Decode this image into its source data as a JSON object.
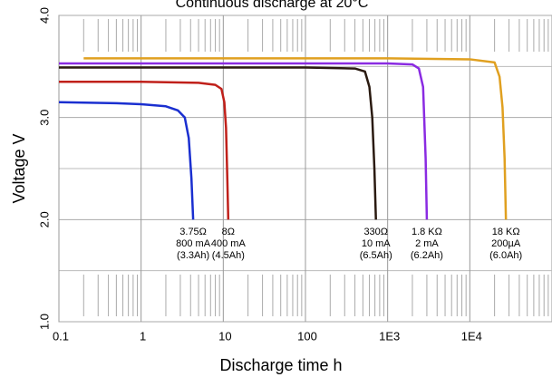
{
  "chart_data": {
    "type": "line",
    "title": "Continuous discharge at 20°C",
    "xlabel": "Discharge time h",
    "ylabel": "Voltage V",
    "xscale": "log",
    "xlim": [
      0.1,
      100000
    ],
    "ylim": [
      1,
      4
    ],
    "xticks": [
      0.1,
      1,
      10,
      100,
      {
        "value": 1000,
        "label": "1E3"
      },
      {
        "value": 10000,
        "label": "1E4"
      }
    ],
    "yticks": [
      {
        "value": 1,
        "label": "1.0"
      },
      {
        "value": 2,
        "label": "2.0"
      },
      {
        "value": 3,
        "label": "3.0"
      },
      {
        "value": 4,
        "label": "4.0"
      }
    ],
    "grid": true,
    "series": [
      {
        "name": [
          "3.75Ω",
          "800 mA",
          "(3.3Ah)"
        ],
        "color": "#1a2fd0",
        "x": [
          0.1,
          0.5,
          1,
          2,
          2.8,
          3.4,
          3.8,
          4.1,
          4.3
        ],
        "values": [
          3.15,
          3.14,
          3.13,
          3.11,
          3.07,
          3.0,
          2.8,
          2.4,
          2.0
        ]
      },
      {
        "name": [
          "8Ω",
          "400 mA",
          "(4.5Ah)"
        ],
        "color": "#c0201a",
        "x": [
          0.1,
          1,
          5,
          8,
          9.5,
          10.3,
          10.8,
          11.2,
          11.5
        ],
        "values": [
          3.35,
          3.35,
          3.34,
          3.32,
          3.28,
          3.15,
          2.9,
          2.4,
          2.0
        ]
      },
      {
        "name": [
          "330Ω",
          "10 mA",
          "(6.5Ah)"
        ],
        "color": "#2a1a10",
        "x": [
          0.1,
          10,
          100,
          400,
          530,
          600,
          650,
          690,
          720
        ],
        "values": [
          3.49,
          3.49,
          3.49,
          3.48,
          3.45,
          3.3,
          3.0,
          2.5,
          2.0
        ]
      },
      {
        "name": [
          "1.8 KΩ",
          "2 mA",
          "(6.2Ah)"
        ],
        "color": "#8a2be2",
        "x": [
          0.1,
          10,
          100,
          1000,
          2000,
          2400,
          2700,
          2900,
          3000
        ],
        "values": [
          3.53,
          3.53,
          3.53,
          3.53,
          3.52,
          3.48,
          3.3,
          2.6,
          2.0
        ]
      },
      {
        "name": [
          "18 KΩ",
          "200µA",
          "(6.0Ah)"
        ],
        "color": "#e0a020",
        "x": [
          0.2,
          10,
          1000,
          10000,
          20000,
          23000,
          25000,
          26500,
          27500
        ],
        "values": [
          3.58,
          3.58,
          3.58,
          3.57,
          3.54,
          3.4,
          3.1,
          2.6,
          2.0
        ]
      }
    ]
  }
}
